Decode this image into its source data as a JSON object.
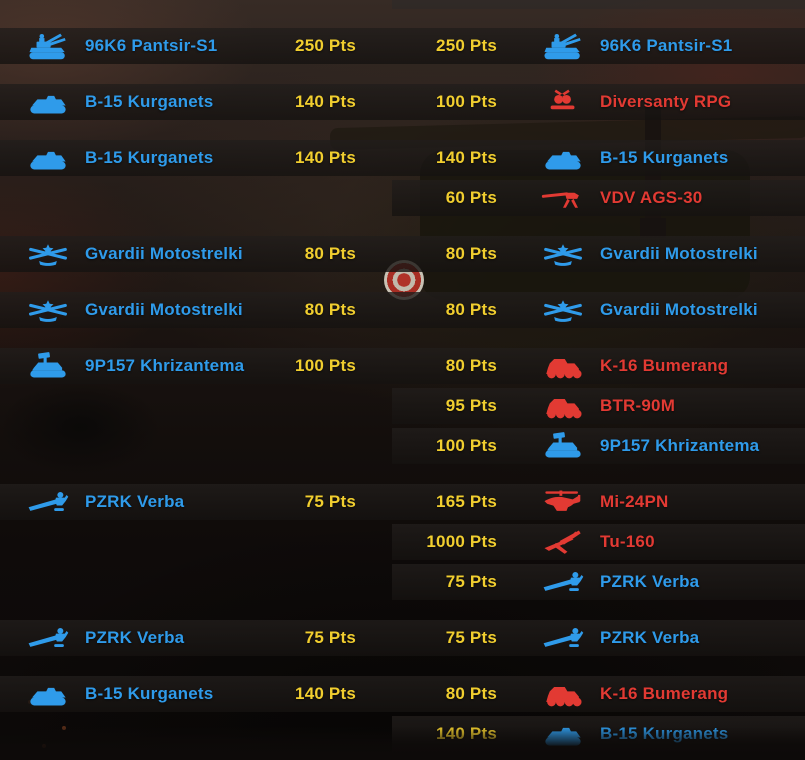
{
  "colors": {
    "blue": "#2f9bea",
    "red": "#e23a33",
    "yellow": "#f1ce2f"
  },
  "rows": [
    {
      "left": {
        "unit": "96K6 Pantsir-S1",
        "points": "250 Pts",
        "icon": "aa-tank-icon",
        "side": "blue"
      },
      "right": {
        "points": "250 Pts",
        "unit": "96K6 Pantsir-S1",
        "icon": "aa-tank-icon",
        "side": "blue"
      }
    },
    {
      "left": {
        "unit": "B-15 Kurganets",
        "points": "140 Pts",
        "icon": "tracked-ifv-icon",
        "side": "blue"
      },
      "right": {
        "points": "100 Pts",
        "unit": "Diversanty RPG",
        "icon": "rpg-infantry-icon",
        "side": "red"
      }
    },
    {
      "left": {
        "unit": "B-15 Kurganets",
        "points": "140 Pts",
        "icon": "tracked-ifv-icon",
        "side": "blue"
      },
      "right": {
        "points": "140 Pts",
        "unit": "B-15 Kurganets",
        "icon": "tracked-ifv-icon",
        "side": "blue"
      }
    },
    {
      "left": null,
      "right": {
        "points": "60 Pts",
        "unit": "VDV AGS-30",
        "icon": "grenade-launcher-icon",
        "side": "red"
      }
    },
    {
      "left": {
        "unit": "Gvardii Motostrelki",
        "points": "80 Pts",
        "icon": "infantry-squad-icon",
        "side": "blue"
      },
      "right": {
        "points": "80 Pts",
        "unit": "Gvardii Motostrelki",
        "icon": "infantry-squad-icon",
        "side": "blue"
      }
    },
    {
      "left": {
        "unit": "Gvardii Motostrelki",
        "points": "80 Pts",
        "icon": "infantry-squad-icon",
        "side": "blue"
      },
      "right": {
        "points": "80 Pts",
        "unit": "Gvardii Motostrelki",
        "icon": "infantry-squad-icon",
        "side": "blue"
      }
    },
    {
      "left": {
        "unit": "9P157 Khrizantema",
        "points": "100 Pts",
        "icon": "atgm-vehicle-icon",
        "side": "blue"
      },
      "right": {
        "points": "80 Pts",
        "unit": "K-16 Bumerang",
        "icon": "wheeled-apc-icon",
        "side": "red"
      }
    },
    {
      "left": null,
      "right": {
        "points": "95 Pts",
        "unit": "BTR-90M",
        "icon": "wheeled-apc-icon",
        "side": "red"
      }
    },
    {
      "left": null,
      "right": {
        "points": "100 Pts",
        "unit": "9P157 Khrizantema",
        "icon": "atgm-vehicle-icon",
        "side": "blue"
      }
    },
    {
      "left": {
        "unit": "PZRK Verba",
        "points": "75 Pts",
        "icon": "manpads-soldier-icon",
        "side": "blue"
      },
      "right": {
        "points": "165 Pts",
        "unit": "Mi-24PN",
        "icon": "attack-helicopter-icon",
        "side": "red"
      }
    },
    {
      "left": null,
      "right": {
        "points": "1000 Pts",
        "unit": "Tu-160",
        "icon": "strategic-bomber-icon",
        "side": "red"
      }
    },
    {
      "left": null,
      "right": {
        "points": "75 Pts",
        "unit": "PZRK Verba",
        "icon": "manpads-soldier-icon",
        "side": "blue"
      }
    },
    {
      "left": {
        "unit": "PZRK Verba",
        "points": "75 Pts",
        "icon": "manpads-soldier-icon",
        "side": "blue"
      },
      "right": {
        "points": "75 Pts",
        "unit": "PZRK Verba",
        "icon": "manpads-soldier-icon",
        "side": "blue"
      }
    },
    {
      "left": {
        "unit": "B-15 Kurganets",
        "points": "140 Pts",
        "icon": "tracked-ifv-icon",
        "side": "blue"
      },
      "right": {
        "points": "80 Pts",
        "unit": "K-16 Bumerang",
        "icon": "wheeled-apc-icon",
        "side": "red"
      }
    },
    {
      "left": null,
      "right": {
        "points": "140 Pts",
        "unit": "B-15 Kurganets",
        "icon": "tracked-ifv-icon",
        "side": "blue"
      }
    }
  ]
}
